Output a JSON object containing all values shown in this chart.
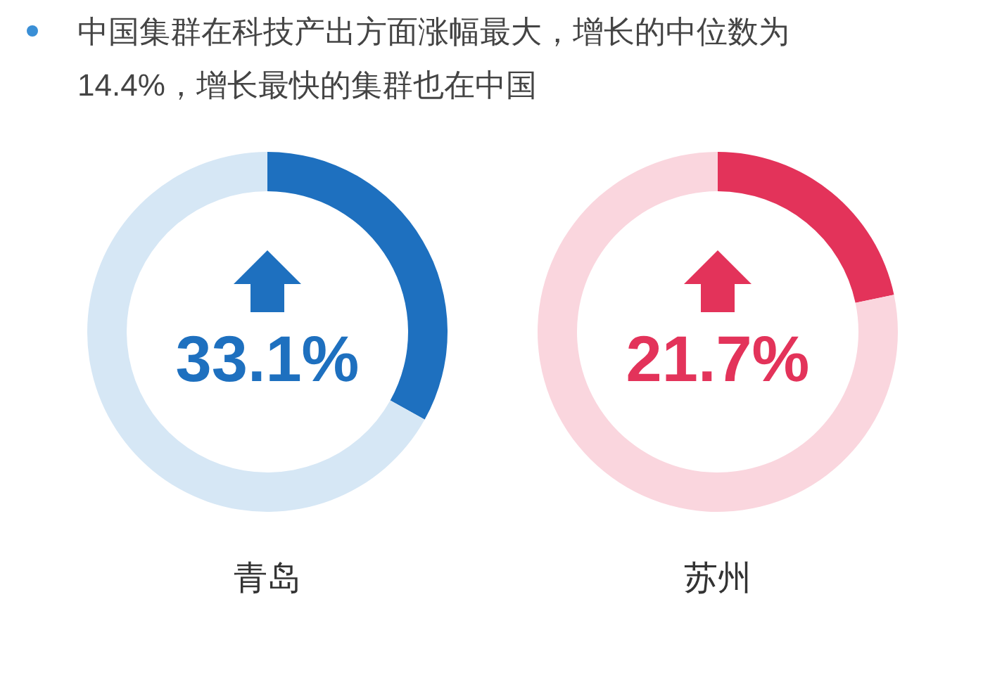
{
  "chart_data": [
    {
      "type": "donut",
      "title": "中国集群在科技产出方面涨幅最大，增长的中位数为14.4%，增长最快的集群也在中国",
      "xlabel": "青岛",
      "categories": [
        null,
        null
      ],
      "values": [
        33.1,
        66.9
      ],
      "colors": [
        "#1e70bf",
        "#d6e7f5"
      ],
      "annotations": [
        "33.1%"
      ]
    },
    {
      "type": "donut",
      "xlabel": "苏州",
      "categories": [
        null,
        null
      ],
      "values": [
        21.7,
        78.3
      ],
      "colors": [
        "#e3335a",
        "#fad6de"
      ],
      "annotations": [
        "21.7%"
      ]
    }
  ]
}
